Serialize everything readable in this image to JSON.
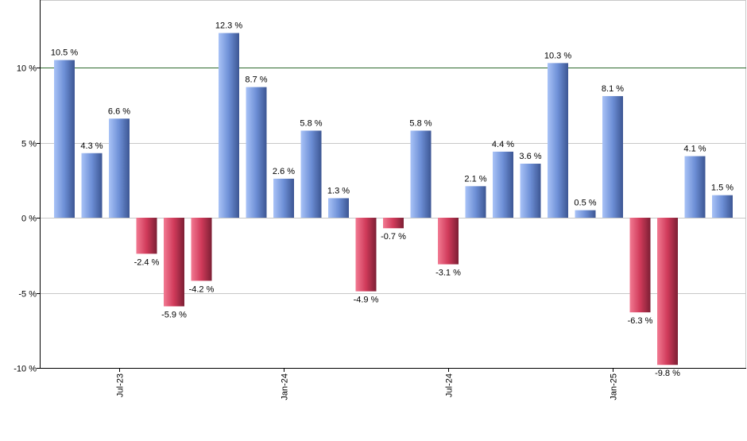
{
  "chart_data": {
    "type": "bar",
    "title": "",
    "xlabel": "",
    "ylabel": "",
    "ylim": [
      -10,
      14.5
    ],
    "y_ticks": [
      10,
      5,
      0,
      -5,
      -10
    ],
    "y_tick_labels": [
      "10 %",
      "5 %",
      "0 %",
      "-5 %",
      "-10 %"
    ],
    "x_tick_labels": [
      {
        "label": "Jul-23",
        "bar_index": 2
      },
      {
        "label": "Jan-24",
        "bar_index": 8
      },
      {
        "label": "Jul-24",
        "bar_index": 14
      },
      {
        "label": "Jan-25",
        "bar_index": 20
      }
    ],
    "values": [
      10.5,
      4.3,
      6.6,
      -2.4,
      -5.9,
      -4.2,
      12.3,
      8.7,
      2.6,
      5.8,
      1.3,
      -4.9,
      -0.7,
      5.8,
      -3.1,
      2.1,
      4.4,
      3.6,
      10.3,
      0.5,
      8.1,
      -6.3,
      -9.8,
      4.1,
      1.5
    ],
    "data_labels": [
      "10.5 %",
      "4.3 %",
      "6.6 %",
      "-2.4 %",
      "-5.9 %",
      "-4.2 %",
      "12.3 %",
      "8.7 %",
      "2.6 %",
      "5.8 %",
      "1.3 %",
      "-4.9 %",
      "-0.7 %",
      "5.8 %",
      "-3.1 %",
      "2.1 %",
      "4.4 %",
      "3.6 %",
      "10.3 %",
      "0.5 %",
      "8.1 %",
      "-6.3 %",
      "-9.8 %",
      "4.1 %",
      "1.5 %"
    ],
    "reference_line": 10,
    "grid": true,
    "legend": "none",
    "colors": {
      "positive": "#6f8fd8",
      "negative": "#d43a5c",
      "reference_line": "#2e6b2e",
      "grid": "#c8c8c8",
      "axis": "#000000"
    }
  }
}
